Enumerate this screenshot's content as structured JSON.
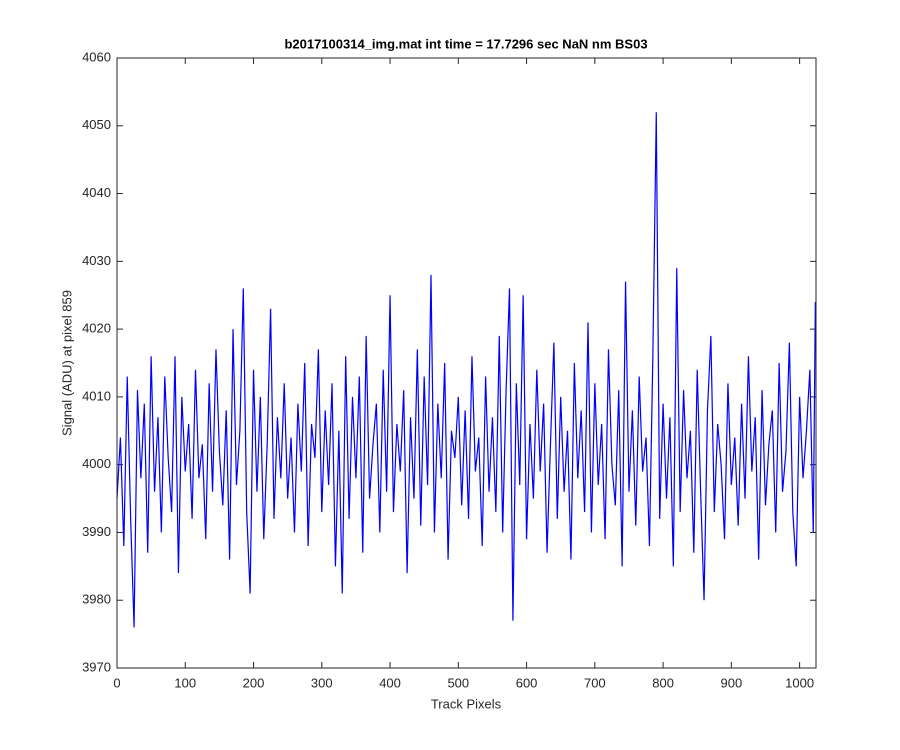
{
  "chart_data": {
    "type": "line",
    "title": "b2017100314_img.mat int time = 17.7296 sec  NaN nm BS03",
    "x_label": "Track Pixels",
    "y_label": "Signal (ADU) at pixel 859",
    "xlim": [
      0,
      1024
    ],
    "ylim": [
      3970,
      4060
    ],
    "xticks": [
      0,
      100,
      200,
      300,
      400,
      500,
      600,
      700,
      800,
      900,
      1000
    ],
    "yticks": [
      3970,
      3980,
      3990,
      4000,
      4010,
      4020,
      4030,
      4040,
      4050,
      4060
    ],
    "x": [
      0,
      5,
      10,
      15,
      20,
      25,
      30,
      35,
      40,
      45,
      50,
      55,
      60,
      65,
      70,
      75,
      80,
      85,
      90,
      95,
      100,
      105,
      110,
      115,
      120,
      125,
      130,
      135,
      140,
      145,
      150,
      155,
      160,
      165,
      170,
      175,
      180,
      185,
      190,
      195,
      200,
      205,
      210,
      215,
      220,
      225,
      230,
      235,
      240,
      245,
      250,
      255,
      260,
      265,
      270,
      275,
      280,
      285,
      290,
      295,
      300,
      305,
      310,
      315,
      320,
      325,
      330,
      335,
      340,
      345,
      350,
      355,
      360,
      365,
      370,
      375,
      380,
      385,
      390,
      395,
      400,
      405,
      410,
      415,
      420,
      425,
      430,
      435,
      440,
      445,
      450,
      455,
      460,
      465,
      470,
      475,
      480,
      485,
      490,
      495,
      500,
      505,
      510,
      515,
      520,
      525,
      530,
      535,
      540,
      545,
      550,
      555,
      560,
      565,
      570,
      575,
      580,
      585,
      590,
      595,
      600,
      605,
      610,
      615,
      620,
      625,
      630,
      635,
      640,
      645,
      650,
      655,
      660,
      665,
      670,
      675,
      680,
      685,
      690,
      695,
      700,
      705,
      710,
      715,
      720,
      725,
      730,
      735,
      740,
      745,
      750,
      755,
      760,
      765,
      770,
      775,
      780,
      785,
      790,
      795,
      800,
      805,
      810,
      815,
      820,
      825,
      830,
      835,
      840,
      845,
      850,
      855,
      860,
      865,
      870,
      875,
      880,
      885,
      890,
      895,
      900,
      905,
      910,
      915,
      920,
      925,
      930,
      935,
      940,
      945,
      950,
      955,
      960,
      965,
      970,
      975,
      980,
      985,
      990,
      995,
      1000,
      1005,
      1010,
      1015,
      1020,
      1023
    ],
    "series": [
      {
        "name": "Signal",
        "color": "#0000ff",
        "values": [
          3995,
          4004,
          3988,
          4013,
          3992,
          3976,
          4011,
          3998,
          4009,
          3987,
          4016,
          3996,
          4007,
          3990,
          4013,
          4001,
          3993,
          4016,
          3984,
          4010,
          3999,
          4006,
          3992,
          4014,
          3998,
          4003,
          3989,
          4012,
          3996,
          4017,
          4002,
          3994,
          4008,
          3986,
          4020,
          3997,
          4005,
          4026,
          3993,
          3981,
          4014,
          3996,
          4010,
          3989,
          4003,
          4023,
          3992,
          4007,
          3998,
          4012,
          3995,
          4004,
          3990,
          4009,
          3999,
          4015,
          3988,
          4006,
          4001,
          4017,
          3993,
          4008,
          3997,
          4012,
          3985,
          4005,
          3981,
          4016,
          3992,
          4010,
          3998,
          4013,
          3987,
          4019,
          3995,
          4003,
          4009,
          3990,
          4014,
          3996,
          4025,
          3993,
          4006,
          3999,
          4011,
          3984,
          4007,
          3995,
          4017,
          3991,
          4013,
          3997,
          4028,
          3990,
          4009,
          3998,
          4015,
          3986,
          4005,
          4001,
          4010,
          3994,
          4008,
          3992,
          4016,
          3999,
          4004,
          3988,
          4013,
          3996,
          4007,
          3993,
          4019,
          3990,
          4011,
          4026,
          3977,
          4012,
          3997,
          4025,
          3989,
          4006,
          3995,
          4014,
          3999,
          4009,
          3987,
          4003,
          4018,
          3992,
          4010,
          3996,
          4005,
          3986,
          4015,
          3998,
          4008,
          3993,
          4021,
          3990,
          4012,
          3997,
          4006,
          3989,
          4017,
          4000,
          3994,
          4011,
          3985,
          4027,
          3996,
          4008,
          3991,
          4013,
          3999,
          4004,
          3988,
          4016,
          4052,
          3992,
          4009,
          3995,
          4007,
          3985,
          4029,
          3993,
          4011,
          3998,
          4005,
          3987,
          4014,
          3996,
          3980,
          4008,
          4019,
          3993,
          4006,
          4000,
          3989,
          4012,
          3997,
          4004,
          3991,
          4009,
          3995,
          4016,
          3999,
          4007,
          3986,
          4011,
          3994,
          4003,
          4008,
          3990,
          4015,
          3996,
          4002,
          4018,
          3993,
          3985,
          4010,
          3998,
          4005,
          4014,
          3990,
          4024
        ]
      }
    ]
  }
}
